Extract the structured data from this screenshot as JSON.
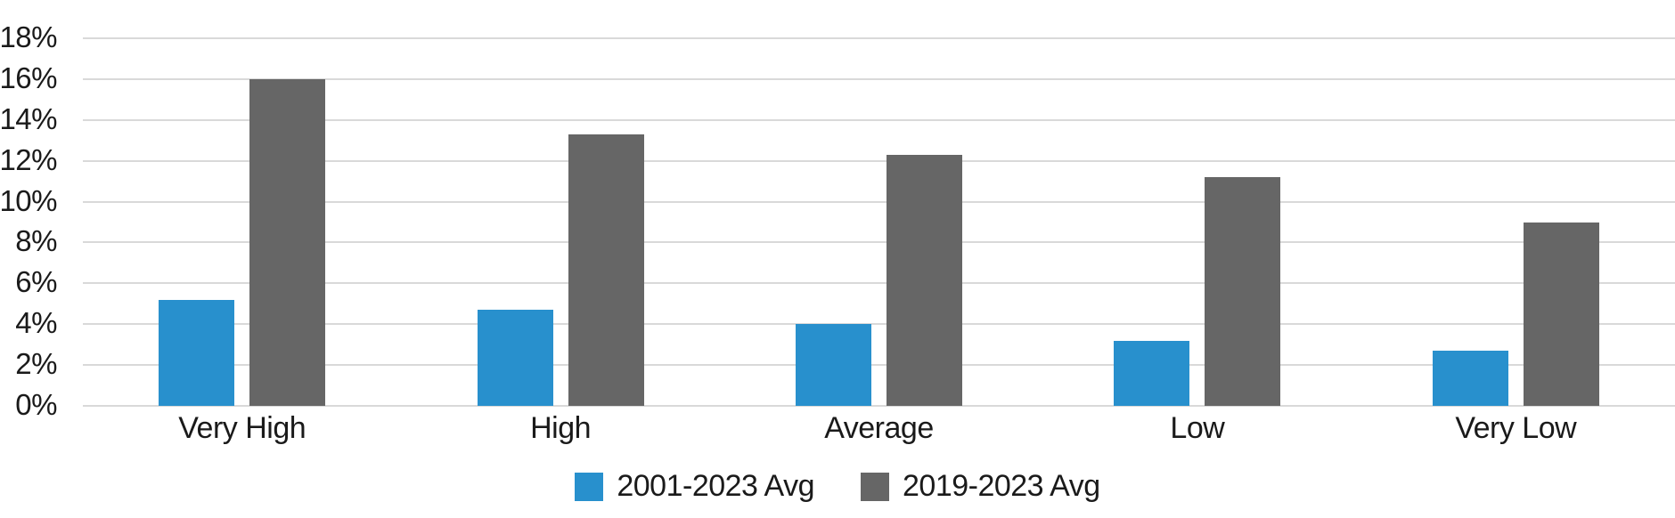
{
  "chart_data": {
    "type": "bar",
    "title": "",
    "xlabel": "",
    "ylabel": "",
    "categories": [
      "Very High",
      "High",
      "Average",
      "Low",
      "Very Low"
    ],
    "series": [
      {
        "name": "2001-2023 Avg",
        "color": "#2890cd",
        "values": [
          5.2,
          4.7,
          4.0,
          3.2,
          2.7
        ]
      },
      {
        "name": "2019-2023 Avg",
        "color": "#666666",
        "values": [
          16.0,
          13.3,
          12.3,
          11.2,
          9.0
        ]
      }
    ],
    "y_axis": {
      "min": 0,
      "max": 18,
      "step": 2,
      "ticks": [
        "0%",
        "2%",
        "4%",
        "6%",
        "8%",
        "10%",
        "12%",
        "14%",
        "16%",
        "18%"
      ]
    },
    "grid": true,
    "legend_position": "bottom"
  },
  "style": {
    "background": "#ffffff",
    "gridline_color": "#d9d9d9",
    "text_color": "#1a1a1a",
    "accent_blue": "#2890cd",
    "accent_gray": "#666666"
  }
}
